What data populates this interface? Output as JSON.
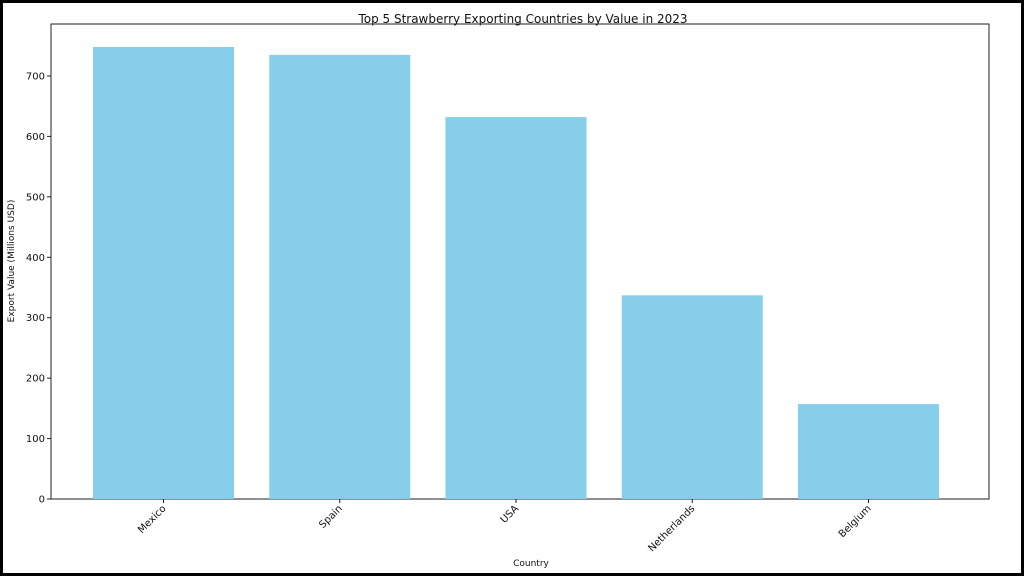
{
  "chart_data": {
    "type": "bar",
    "title": "Top 5 Strawberry Exporting Countries by Value in 2023",
    "xlabel": "Country",
    "ylabel": "Export Value (Millions USD)",
    "categories": [
      "Mexico",
      "Spain",
      "USA",
      "Netherlands",
      "Belgium"
    ],
    "values": [
      748,
      735,
      632,
      337,
      157
    ],
    "ylim": [
      0,
      786
    ],
    "yticks": [
      0,
      100,
      200,
      300,
      400,
      500,
      600,
      700
    ],
    "bar_color": "#87CEEB",
    "grid": false,
    "legend": "none"
  }
}
